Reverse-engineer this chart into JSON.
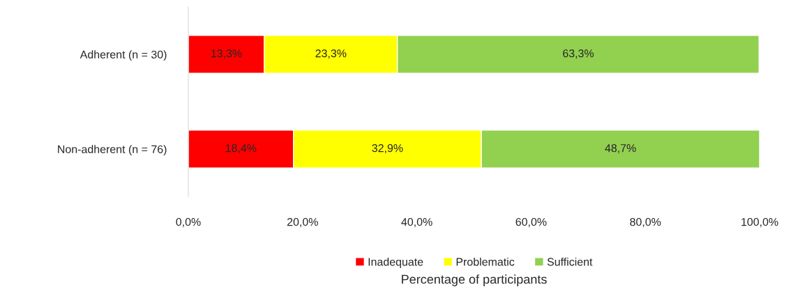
{
  "chart_data": {
    "type": "bar",
    "orientation": "horizontal",
    "stacked": true,
    "categories": [
      "Adherent (n = 30)",
      "Non-adherent (n = 76)"
    ],
    "series": [
      {
        "name": "Inadequate",
        "color": "#ff0000",
        "values": [
          13.3,
          18.4
        ],
        "value_labels": [
          "13,3%",
          "18,4%"
        ]
      },
      {
        "name": "Problematic",
        "color": "#ffff00",
        "values": [
          23.3,
          32.9
        ],
        "value_labels": [
          "23,3%",
          "32,9%"
        ]
      },
      {
        "name": "Sufficient",
        "color": "#92d050",
        "values": [
          63.3,
          48.7
        ],
        "value_labels": [
          "63,3%",
          "48,7%"
        ]
      }
    ],
    "xlim": [
      0,
      100
    ],
    "xticks": [
      {
        "value": 0,
        "label": "0,0%"
      },
      {
        "value": 20,
        "label": "20,0%"
      },
      {
        "value": 40,
        "label": "40,0%"
      },
      {
        "value": 60,
        "label": "60,0%"
      },
      {
        "value": 80,
        "label": "80,0%"
      },
      {
        "value": 100,
        "label": "100,0%"
      }
    ],
    "xlabel": "Percentage of participants",
    "legend": "bottom"
  }
}
